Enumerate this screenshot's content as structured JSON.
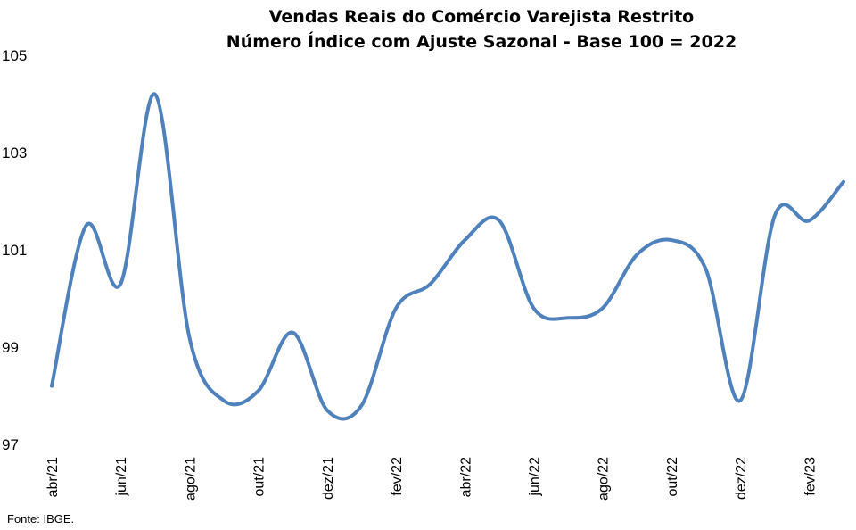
{
  "chart_data": {
    "type": "line",
    "title": "Vendas Reais do Comércio Varejista Restrito",
    "subtitle": "Número Índice com Ajuste Sazonal - Base 100 = 2022",
    "source": "Fonte: IBGE.",
    "x": [
      "abr/21",
      "mai/21",
      "jun/21",
      "jul/21",
      "ago/21",
      "set/21",
      "out/21",
      "nov/21",
      "dez/21",
      "jan/22",
      "fev/22",
      "mar/22",
      "abr/22",
      "mai/22",
      "jun/22",
      "jul/22",
      "ago/22",
      "set/22",
      "out/22",
      "nov/22",
      "dez/22",
      "jan/23",
      "fev/23",
      "mar/23"
    ],
    "x_tick_labels": [
      "abr/21",
      "jun/21",
      "ago/21",
      "out/21",
      "dez/21",
      "fev/22",
      "abr/22",
      "jun/22",
      "ago/22",
      "out/22",
      "dez/22",
      "fev/23"
    ],
    "series": [
      {
        "color": "#4f81bd",
        "values": [
          98.2,
          101.5,
          100.3,
          104.2,
          99.2,
          97.9,
          98.1,
          99.3,
          97.7,
          97.8,
          99.8,
          100.3,
          101.2,
          101.6,
          99.8,
          99.6,
          99.8,
          100.9,
          101.2,
          100.6,
          97.9,
          101.7,
          101.6,
          102.4
        ]
      }
    ],
    "ylim": [
      97,
      105
    ],
    "yticks": [
      97,
      99,
      101,
      103,
      105
    ],
    "grid": false,
    "legend": "none"
  }
}
